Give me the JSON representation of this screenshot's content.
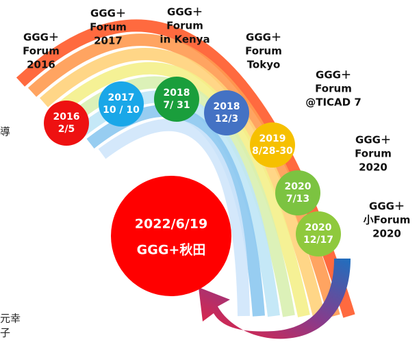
{
  "events": [
    {
      "label": [
        "GGG＋",
        "Forum",
        "2016"
      ],
      "date": [
        "2016",
        "2/5"
      ]
    },
    {
      "label": [
        "GGG＋",
        "Forum",
        "2017"
      ],
      "date": [
        "2017",
        "10 / 10"
      ]
    },
    {
      "label": [
        "GGG＋",
        "Forum",
        "in Kenya"
      ],
      "date": [
        "2018",
        "7/ 31"
      ]
    },
    {
      "label": [
        "GGG＋",
        "Forum",
        "Tokyo"
      ],
      "date": [
        "2018",
        "12/3"
      ]
    },
    {
      "label": [
        "GGG＋",
        "Forum",
        "@TICAD 7"
      ],
      "date": [
        "2019",
        "8/28-30"
      ]
    },
    {
      "label": [
        "GGG＋",
        "Forum",
        "2020"
      ],
      "date": [
        "2020",
        "7/13"
      ]
    },
    {
      "label": [
        "GGG＋",
        "小Forum",
        "2020"
      ],
      "date": [
        "2020",
        "12/17"
      ]
    }
  ],
  "highlight": [
    "2022/6/19",
    "GGG+秋田"
  ],
  "fragments": [
    "導",
    "元幸",
    "子"
  ]
}
